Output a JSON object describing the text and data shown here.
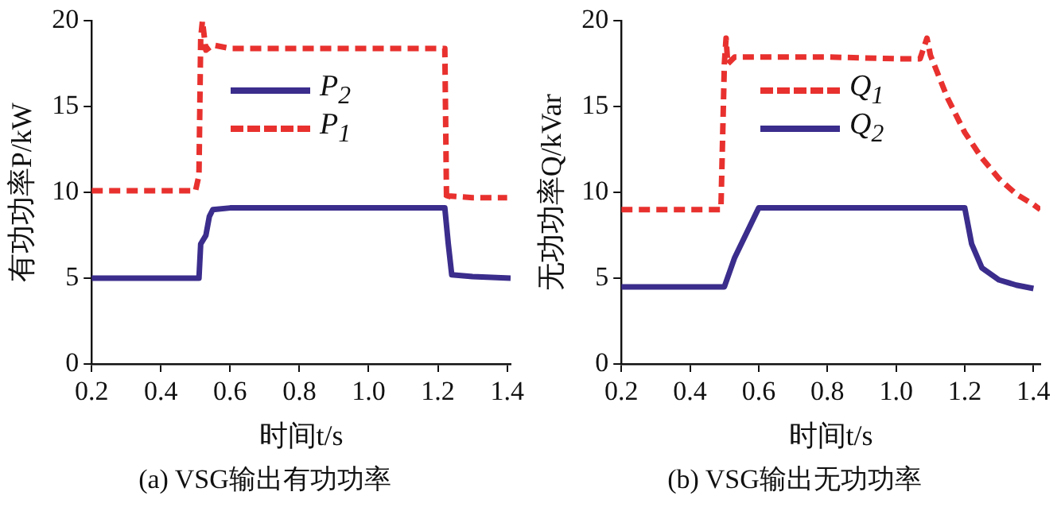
{
  "chart_data": [
    {
      "type": "line",
      "title": "(a) VSG输出有功功率",
      "xlabel": "时间t/s",
      "ylabel": "有功功率P/kW",
      "xlim": [
        0.2,
        1.41
      ],
      "xticks": [
        0.2,
        0.4,
        0.6,
        0.8,
        {
          "value": 1.0,
          "label": "1.0"
        },
        1.2,
        1.4
      ],
      "ylim": [
        0,
        20
      ],
      "yticks": [
        0,
        5,
        10,
        15,
        20
      ],
      "grid": false,
      "legend": "top",
      "marker": "none",
      "series": [
        {
          "name": "P$_{2}$",
          "color": "#3a2d8c",
          "line_style": "solid",
          "x": [
            0.2,
            0.3,
            0.4,
            0.5,
            0.51,
            0.515,
            0.53,
            0.54,
            0.55,
            0.6,
            0.7,
            0.8,
            0.9,
            1.0,
            1.1,
            1.2,
            1.22,
            1.23,
            1.24,
            1.3,
            1.41
          ],
          "values": [
            5,
            5,
            5,
            5,
            5,
            7,
            7.5,
            8.6,
            9,
            9.1,
            9.1,
            9.1,
            9.1,
            9.1,
            9.1,
            9.1,
            9.1,
            7,
            5.2,
            5.1,
            5
          ]
        },
        {
          "name": "P$_{1}$",
          "color": "#e8312e",
          "line_style": "dashed",
          "x": [
            0.2,
            0.3,
            0.4,
            0.5,
            0.51,
            0.515,
            0.52,
            0.53,
            0.55,
            0.6,
            0.8,
            1.0,
            1.2,
            1.22,
            1.225,
            1.23,
            1.3,
            1.4
          ],
          "values": [
            10.1,
            10.1,
            10.1,
            10.1,
            11,
            19,
            20,
            18.3,
            18.6,
            18.4,
            18.4,
            18.4,
            18.4,
            18.4,
            9.5,
            9.8,
            9.7,
            9.7
          ]
        }
      ]
    },
    {
      "type": "line",
      "title": "(b) VSG输出无功功率",
      "xlabel": "时间t/s",
      "ylabel": "无功功率Q/kVar",
      "xlim": [
        0.2,
        1.42
      ],
      "xticks": [
        0.2,
        0.4,
        0.6,
        0.8,
        {
          "value": 1.0,
          "label": "1.0"
        },
        1.2,
        1.4
      ],
      "ylim": [
        0,
        20
      ],
      "yticks": [
        0,
        5,
        10,
        15,
        20
      ],
      "grid": false,
      "legend": "top",
      "marker": "none",
      "series": [
        {
          "name": "Q$_{1}$",
          "color": "#e8312e",
          "line_style": "dashed",
          "x": [
            0.2,
            0.3,
            0.4,
            0.49,
            0.5,
            0.505,
            0.51,
            0.53,
            0.6,
            0.8,
            1.0,
            1.07,
            1.09,
            1.1,
            1.15,
            1.2,
            1.25,
            1.3,
            1.35,
            1.4,
            1.42
          ],
          "values": [
            9,
            9,
            9,
            9,
            17.5,
            19,
            17.5,
            17.9,
            17.9,
            17.9,
            17.8,
            17.8,
            19,
            18,
            15.5,
            13.5,
            12,
            10.8,
            9.9,
            9.3,
            9
          ]
        },
        {
          "name": "Q$_{2}$",
          "color": "#3a2d8c",
          "line_style": "solid",
          "x": [
            0.2,
            0.3,
            0.4,
            0.5,
            0.53,
            0.6,
            0.7,
            0.8,
            0.9,
            1.0,
            1.1,
            1.2,
            1.22,
            1.25,
            1.3,
            1.35,
            1.4
          ],
          "values": [
            4.5,
            4.5,
            4.5,
            4.5,
            6.2,
            9.1,
            9.1,
            9.1,
            9.1,
            9.1,
            9.1,
            9.1,
            7,
            5.6,
            4.9,
            4.6,
            4.4
          ]
        }
      ]
    }
  ]
}
